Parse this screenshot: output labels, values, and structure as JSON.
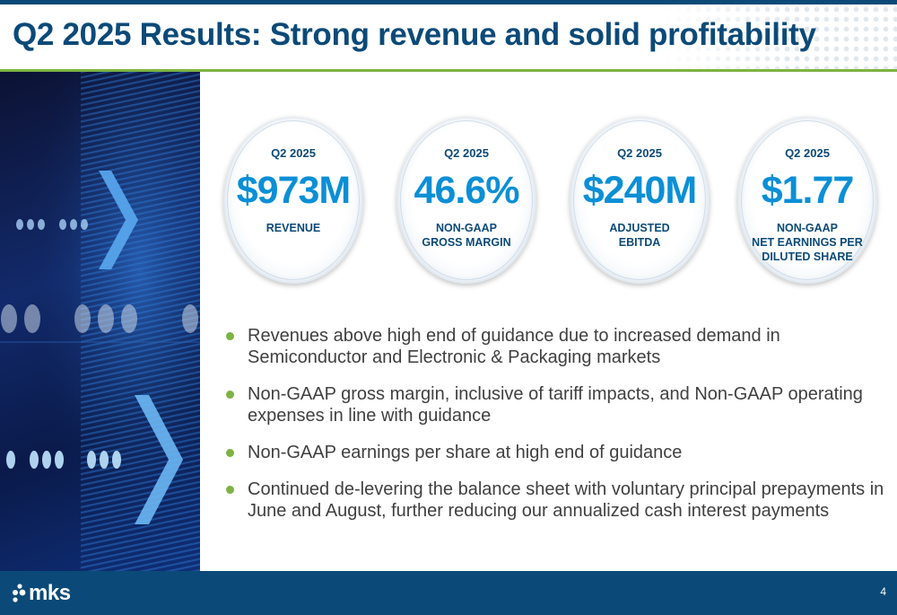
{
  "slide": {
    "title": "Q2 2025 Results: Strong revenue and solid profitability",
    "page_number": "4"
  },
  "metrics": [
    {
      "period": "Q2 2025",
      "value": "$973M",
      "label_lines": [
        "REVENUE"
      ]
    },
    {
      "period": "Q2 2025",
      "value": "46.6%",
      "label_lines": [
        "NON-GAAP",
        "GROSS MARGIN"
      ]
    },
    {
      "period": "Q2 2025",
      "value": "$240M",
      "label_lines": [
        "ADJUSTED",
        "EBITDA"
      ]
    },
    {
      "period": "Q2 2025",
      "value": "$1.77",
      "label_lines": [
        "NON-GAAP",
        "NET EARNINGS PER",
        "DILUTED SHARE"
      ]
    }
  ],
  "bullets": [
    {
      "lines": [
        "Revenues above high end of guidance due to increased demand in",
        "Semiconductor and Electronic & Packaging markets"
      ]
    },
    {
      "lines": [
        "Non-GAAP gross margin, inclusive of tariff impacts, and Non-GAAP operating",
        "expenses in line with guidance"
      ]
    },
    {
      "lines": [
        "Non-GAAP earnings per share at high end of guidance"
      ]
    },
    {
      "lines": [
        "Continued de-levering the balance sheet with voluntary principal prepayments in",
        "June and August, further reducing our annualized cash interest payments"
      ]
    }
  ],
  "footer": {
    "logo_text": "mks"
  },
  "colors": {
    "primary_navy": "#0b4a78",
    "accent_green": "#7db342",
    "value_blue": "#0b8fd6"
  },
  "icons": {
    "bullet": "green-dot-bullet",
    "side_image": "digital-arrows-graphic",
    "logo": "mks-dots-logo"
  }
}
